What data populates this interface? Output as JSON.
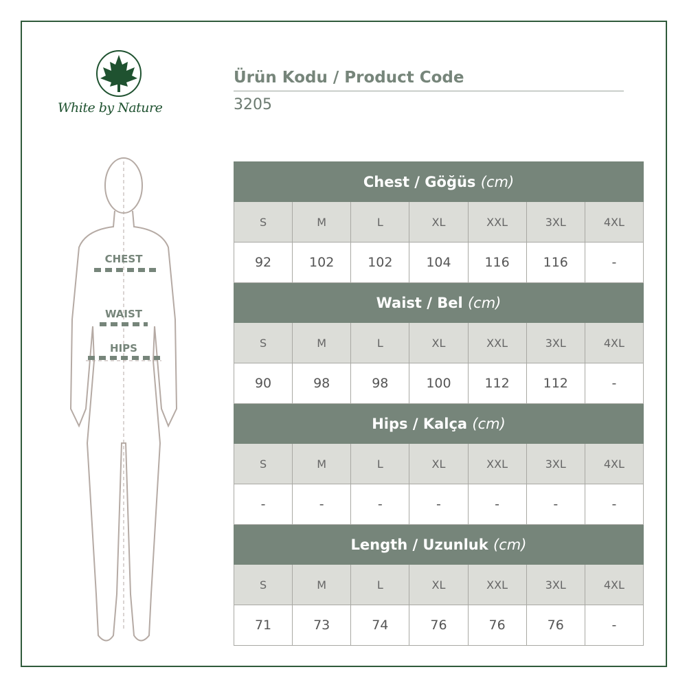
{
  "brand": {
    "name": "White by Nature",
    "color": "#1f5230"
  },
  "product": {
    "title": "Ürün Kodu / Product Code",
    "code": "3205"
  },
  "figure": {
    "labels": [
      "CHEST",
      "WAIST",
      "HIPS"
    ]
  },
  "colors": {
    "header": "#76857a",
    "size_row": "#dcddd8",
    "frame": "#2f5a3a"
  },
  "unit": "(cm)",
  "sizes": [
    "S",
    "M",
    "L",
    "XL",
    "XXL",
    "3XL",
    "4XL"
  ],
  "sections": [
    {
      "title": "Chest / Göğüs",
      "values": [
        "92",
        "102",
        "102",
        "104",
        "116",
        "116",
        "-"
      ]
    },
    {
      "title": "Waist / Bel",
      "values": [
        "90",
        "98",
        "98",
        "100",
        "112",
        "112",
        "-"
      ]
    },
    {
      "title": "Hips / Kalça",
      "values": [
        "-",
        "-",
        "-",
        "-",
        "-",
        "-",
        "-"
      ]
    },
    {
      "title": "Length / Uzunluk",
      "values": [
        "71",
        "73",
        "74",
        "76",
        "76",
        "76",
        "-"
      ]
    }
  ]
}
